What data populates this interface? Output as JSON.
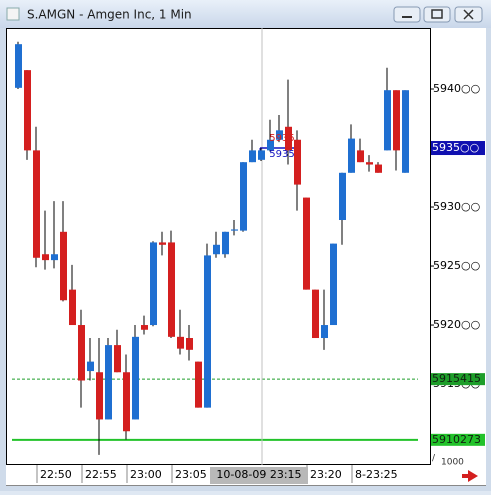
{
  "chart_data": {
    "type": "candlestick",
    "title": "S.AMGN - Amgen Inc, 1 Min",
    "categories": [
      null,
      null,
      "22:50",
      null,
      null,
      null,
      null,
      "22:55",
      null,
      null,
      null,
      null,
      "23:00",
      null,
      null,
      null,
      null,
      "23:05",
      null,
      null,
      null,
      null,
      null,
      null,
      null,
      null,
      null,
      null,
      null,
      null,
      null,
      null,
      "23:20",
      null,
      null,
      null,
      null,
      "8-23:25",
      null,
      null,
      null,
      null,
      null,
      null
    ],
    "open": [
      5940.1,
      5941.6,
      5934.8,
      5926,
      5925.5,
      5927.9,
      5923,
      5920,
      5916.1,
      5916,
      5912,
      5918.3,
      5916,
      5912,
      5920,
      5920,
      5927,
      5927,
      5919,
      5918.9,
      5916.9,
      5913,
      5926,
      5926,
      5928,
      5928,
      5933.8,
      5934,
      5934.8,
      5935.7,
      5936.8,
      5935.7,
      5930.8,
      5923,
      5918.9,
      5920,
      5928.9,
      5932.9,
      5934.8,
      5933.8,
      5933.6,
      5934.8,
      5939.9,
      5932.9
    ],
    "high": [
      5944,
      5941.6,
      5936.8,
      5929.7,
      5930.5,
      5930.5,
      5925.1,
      5921.3,
      5918.9,
      5918.9,
      5918.9,
      5919.6,
      5917.5,
      5920,
      5920.8,
      5927.1,
      5927.9,
      5928,
      5921.3,
      5920,
      5916.9,
      5926.9,
      5927.9,
      5927.9,
      5928.9,
      5933.8,
      5935.7,
      5935,
      5937.4,
      5937.8,
      5940.8,
      5936.5,
      5930.8,
      5923,
      5923,
      5926.9,
      5932.9,
      5937,
      5935.8,
      5934.4,
      5933.8,
      5941.8,
      5939.9,
      5939.9
    ],
    "low": [
      5940,
      5934,
      5924.9,
      5924.7,
      5924.8,
      5922,
      5920,
      5913,
      5915.3,
      5909,
      5912,
      5916,
      5910.3,
      5912,
      5919.2,
      5919.9,
      5925.9,
      5918.9,
      5917.5,
      5917,
      5913,
      5913,
      5925.7,
      5925.7,
      5927.6,
      5927.9,
      5933.8,
      5933.9,
      5934.7,
      5935.5,
      5933.6,
      5929.7,
      5923,
      5918.9,
      5917.9,
      5920,
      5926.8,
      5932.9,
      5933.8,
      5933,
      5932.9,
      5934.8,
      5933.1,
      5932.9
    ],
    "close": [
      5943.8,
      5934.8,
      5925.7,
      5925.5,
      5926,
      5922.1,
      5920,
      5915.3,
      5916.9,
      5912,
      5918.3,
      5916,
      5911,
      5919,
      5919.6,
      5927,
      5926.8,
      5919,
      5918,
      5917.9,
      5913,
      5925.9,
      5926.8,
      5927.9,
      5928.1,
      5933.8,
      5934.8,
      5934.8,
      5935.7,
      5936.5,
      5934.8,
      5931.9,
      5923,
      5918.9,
      5920,
      5926.9,
      5932.9,
      5935.8,
      5933.8,
      5933.6,
      5932.9,
      5939.9,
      5934.8,
      5939.9
    ],
    "up_color": "#1f6fd1",
    "down_color": "#d41f1f",
    "ylim": [
      5908.14,
      5945.17
    ],
    "yticks": [
      {
        "value": 5915,
        "label": "5915○○"
      },
      {
        "value": 5920,
        "label": "5920○○"
      },
      {
        "value": 5925,
        "label": "5925○○"
      },
      {
        "value": 5930,
        "label": "5930○○"
      },
      {
        "value": 5935,
        "label": "5935○○"
      },
      {
        "value": 5940,
        "label": "5940○○"
      }
    ],
    "levels": [
      {
        "value": 5915.415,
        "label": "5915415",
        "style": "dashed",
        "color": "#1e9e2a"
      },
      {
        "value": 5910.273,
        "label": "5910273",
        "style": "solid",
        "color": "#22c22a"
      }
    ],
    "crosshair": {
      "index": 27,
      "x_label": "10-08-09 23:15",
      "price": {
        "value": 5935,
        "label": "5935○○"
      }
    },
    "markers": [
      {
        "text": "5935",
        "color": "#d41f1f"
      },
      {
        "text": "5935",
        "color": "#1010c0"
      }
    ],
    "scale_note": "1000"
  }
}
